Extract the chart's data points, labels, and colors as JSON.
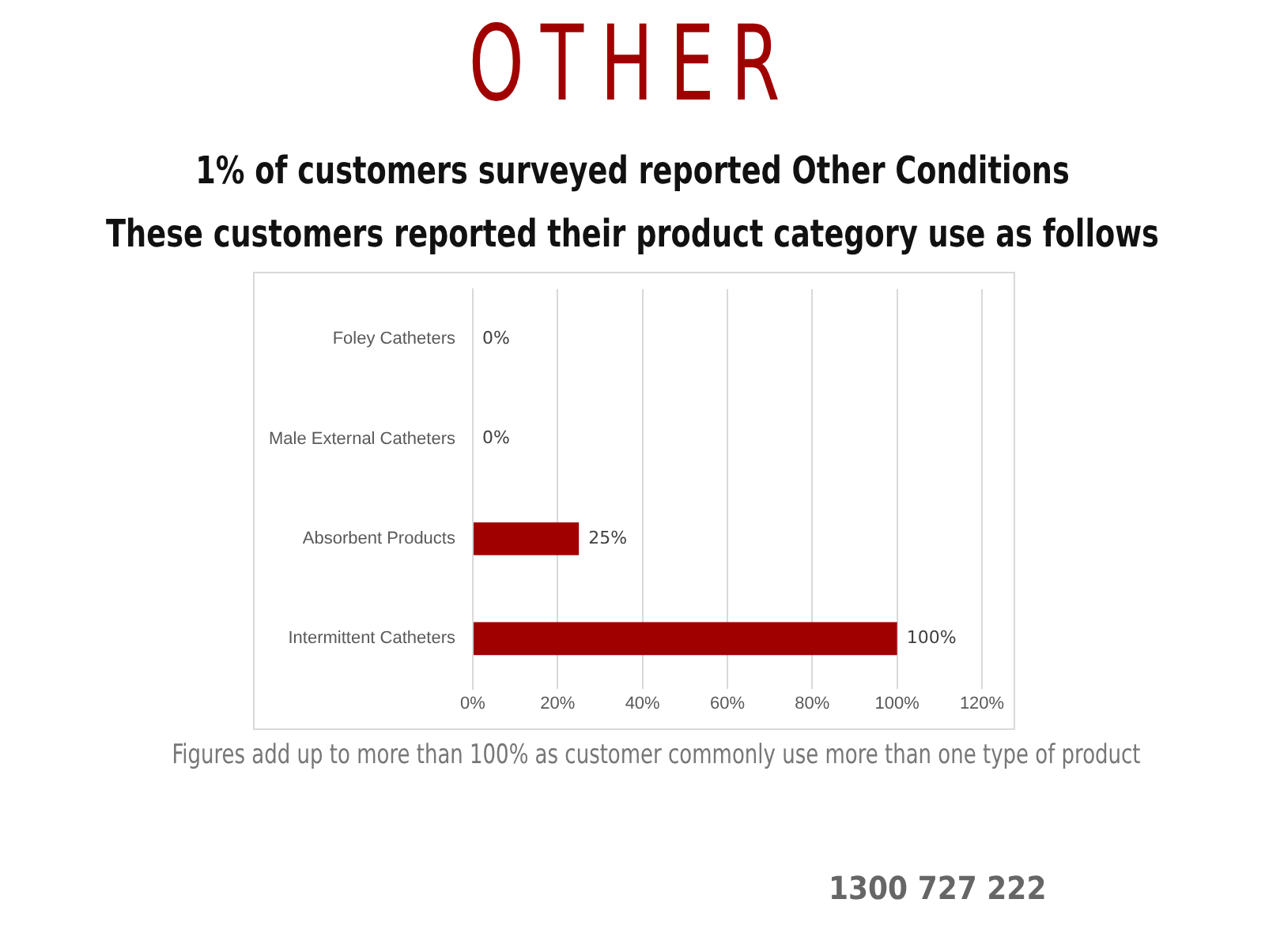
{
  "chart_data": {
    "type": "bar",
    "orientation": "horizontal",
    "title": "OTHER",
    "subtitle": "1% of customers surveyed reported Other Conditions\nThese customers reported their product category use as follows",
    "categories": [
      "Foley Catheters",
      "Male External Catheters",
      "Absorbent Products",
      "Intermittent Catheters"
    ],
    "values": [
      0,
      0,
      25,
      100
    ],
    "value_labels": [
      "0%",
      "0%",
      "25%",
      "100%"
    ],
    "color": "#a00000",
    "xlim": [
      0,
      120
    ],
    "xticks": [
      {
        "value": 0,
        "label": "0%"
      },
      {
        "value": 20,
        "label": "20%"
      },
      {
        "value": 40,
        "label": "40%"
      },
      {
        "value": 60,
        "label": "60%"
      },
      {
        "value": 80,
        "label": "80%"
      },
      {
        "value": 100,
        "label": "100%"
      },
      {
        "value": 120,
        "label": "120%"
      }
    ],
    "grid": "x",
    "legend": false,
    "annotations": [
      "Figures add up to more than 100% as customer commonly use more than one type of product",
      "1300 727 222"
    ]
  }
}
